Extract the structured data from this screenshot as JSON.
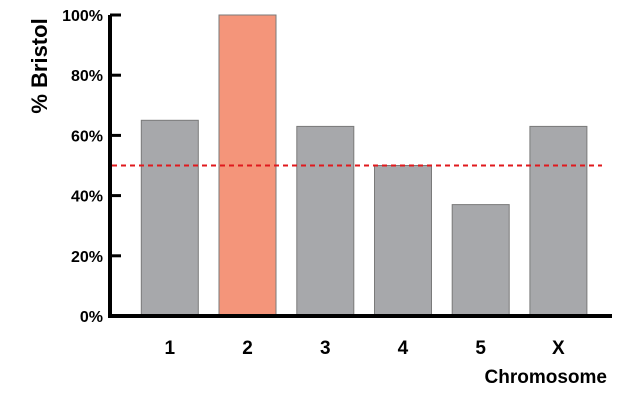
{
  "chart_data": {
    "type": "bar",
    "title": "",
    "xlabel": "Chromosome",
    "ylabel": "% Bristol",
    "categories": [
      "1",
      "2",
      "3",
      "4",
      "5",
      "X"
    ],
    "values": [
      65,
      100,
      63,
      50,
      37,
      63
    ],
    "bar_colors": [
      "#a7a8ab",
      "#f4957a",
      "#a7a8ab",
      "#a7a8ab",
      "#a7a8ab",
      "#a7a8ab"
    ],
    "bar_edge_color": "#7a7a7a",
    "ylim": [
      0,
      100
    ],
    "yticks": [
      0,
      20,
      40,
      60,
      80,
      100
    ],
    "ytick_labels": [
      "0%",
      "20%",
      "40%",
      "60%",
      "80%",
      "100%"
    ],
    "reference_line": {
      "value": 50,
      "color": "#e0191d",
      "style": "dashed"
    },
    "grid": false,
    "legend": "none"
  }
}
